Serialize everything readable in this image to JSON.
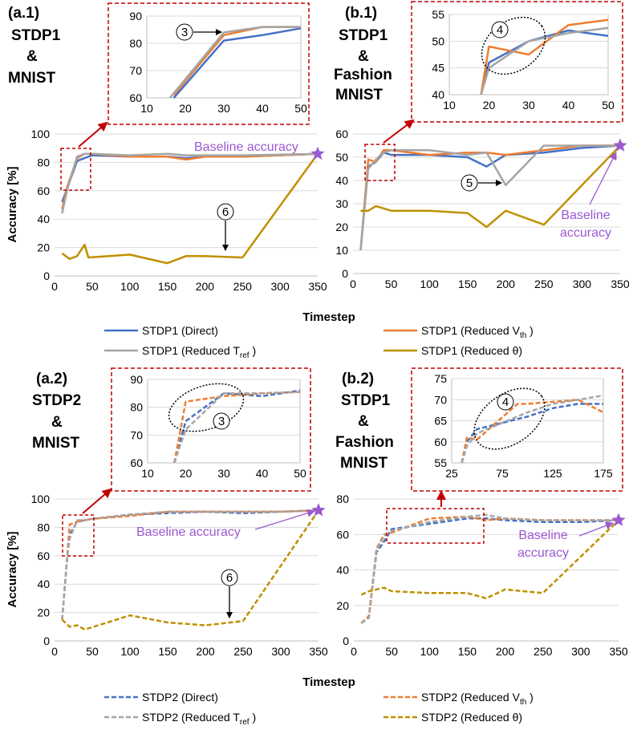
{
  "colors": {
    "direct": "#4472c4",
    "vth": "#ed7d31",
    "tref": "#a5a5a5",
    "theta": "#bf9000",
    "baseline": "#9b59d0",
    "zoom": "#c00000"
  },
  "labels": {
    "a1": [
      "(a.1)",
      "STDP1",
      "&",
      "MNIST"
    ],
    "b1": [
      "(b.1)",
      "STDP1",
      "&",
      "Fashion",
      "MNIST"
    ],
    "a2": [
      "(a.2)",
      "STDP2",
      "&",
      "MNIST"
    ],
    "b2": [
      "(b.2)",
      "STDP1",
      "&",
      "Fashion",
      "MNIST"
    ]
  },
  "axes": {
    "ylabel": "Accuracy [%]",
    "xlabel_top": "Timestep",
    "xlabel_bottom": "Timestep"
  },
  "annotations": {
    "baseline_a1": "Baseline accuracy",
    "baseline_b1": [
      "Baseline",
      "accuracy"
    ],
    "baseline_a2": "Baseline accuracy",
    "baseline_b2": [
      "Baseline",
      "accuracy"
    ],
    "marker3_a1": "3",
    "marker4_b1": "4",
    "marker5_b1": "5",
    "marker6_a1": "6",
    "marker3_a2": "3",
    "marker4_b2": "4",
    "marker6_a2": "6"
  },
  "legend_top": [
    {
      "label": "STDP1 (Direct)",
      "series": "direct"
    },
    {
      "label": "STDP1 (Reduced V",
      "sub": "th",
      "tail": " )",
      "series": "vth"
    },
    {
      "label": "STDP1 (Reduced T",
      "sub": "ref",
      "tail": " )",
      "series": "tref"
    },
    {
      "label": "STDP1 (Reduced θ)",
      "series": "theta"
    }
  ],
  "legend_bottom": [
    {
      "label": "STDP2 (Direct)",
      "series": "direct"
    },
    {
      "label": "STDP2 (Reduced  V",
      "sub": "th",
      "tail": " )",
      "series": "vth"
    },
    {
      "label": "STDP2 (Reduced T",
      "sub": "ref",
      "tail": " )",
      "series": "tref"
    },
    {
      "label": "STDP2 (Reduced θ)",
      "series": "theta"
    }
  ],
  "chart_data": [
    {
      "id": "a1_main",
      "type": "line",
      "title": "(a.1) STDP1 & MNIST",
      "xlabel": "Timestep",
      "ylabel": "Accuracy [%]",
      "xlim": [
        0,
        350
      ],
      "ylim": [
        0,
        100
      ],
      "xticks": [
        0,
        50,
        100,
        150,
        200,
        250,
        300,
        350
      ],
      "yticks": [
        0,
        20,
        40,
        60,
        80,
        100
      ],
      "dashed": false,
      "series": [
        {
          "name": "STDP1 (Direct)",
          "key": "direct",
          "x": [
            10,
            17,
            30,
            40,
            50,
            100,
            150,
            175,
            200,
            250,
            350
          ],
          "y": [
            52,
            62,
            81,
            83,
            85,
            84,
            84,
            83,
            84,
            84,
            86
          ]
        },
        {
          "name": "STDP1 (Reduced Vth)",
          "key": "vth",
          "x": [
            10,
            17,
            30,
            40,
            50,
            100,
            150,
            175,
            200,
            250,
            350
          ],
          "y": [
            47,
            63,
            83,
            86,
            86,
            84,
            84,
            82,
            84,
            84,
            86
          ]
        },
        {
          "name": "STDP1 (Reduced Tref)",
          "key": "tref",
          "x": [
            10,
            17,
            30,
            40,
            50,
            100,
            150,
            175,
            200,
            250,
            350
          ],
          "y": [
            44,
            61,
            84,
            86,
            86,
            85,
            86,
            85,
            85,
            85,
            86
          ]
        },
        {
          "name": "STDP1 (Reduced θ)",
          "key": "theta",
          "x": [
            10,
            20,
            30,
            40,
            45,
            100,
            150,
            175,
            200,
            250,
            350
          ],
          "y": [
            16,
            12,
            14,
            22,
            13,
            15,
            9,
            14,
            14,
            13,
            86
          ]
        }
      ]
    },
    {
      "id": "a1_zoom",
      "type": "line",
      "xlim": [
        10,
        50
      ],
      "ylim": [
        60,
        90
      ],
      "xticks": [
        10,
        20,
        30,
        40,
        50
      ],
      "yticks": [
        60,
        70,
        80,
        90
      ],
      "dashed": false,
      "series": [
        {
          "key": "direct",
          "x": [
            17,
            30,
            40,
            50
          ],
          "y": [
            60,
            81,
            83,
            85.5
          ]
        },
        {
          "key": "vth",
          "x": [
            17,
            30,
            40,
            50
          ],
          "y": [
            61,
            83,
            86,
            86
          ]
        },
        {
          "key": "tref",
          "x": [
            16,
            30,
            40,
            50
          ],
          "y": [
            58,
            84,
            86,
            86
          ]
        }
      ]
    },
    {
      "id": "b1_main",
      "type": "line",
      "title": "(b.1) STDP1 & Fashion MNIST",
      "xlabel": "Timestep",
      "xlim": [
        0,
        350
      ],
      "ylim": [
        0,
        60
      ],
      "xticks": [
        0,
        50,
        100,
        150,
        200,
        250,
        300,
        350
      ],
      "yticks": [
        0,
        10,
        20,
        30,
        40,
        50,
        60
      ],
      "dashed": false,
      "series": [
        {
          "key": "direct",
          "x": [
            10,
            20,
            30,
            40,
            50,
            100,
            150,
            175,
            200,
            250,
            300,
            350
          ],
          "y": [
            10,
            46,
            48,
            52,
            51,
            51,
            50,
            46,
            51,
            52,
            54,
            55
          ]
        },
        {
          "key": "vth",
          "x": [
            10,
            20,
            30,
            40,
            50,
            100,
            150,
            175,
            200,
            250,
            300,
            350
          ],
          "y": [
            10,
            49,
            48,
            53,
            53,
            51,
            52,
            52,
            51,
            53,
            55,
            55
          ]
        },
        {
          "key": "tref",
          "x": [
            10,
            20,
            30,
            40,
            50,
            100,
            150,
            175,
            200,
            250,
            300,
            350
          ],
          "y": [
            10,
            45,
            49,
            52,
            53,
            53,
            51,
            52,
            38,
            55,
            55,
            55
          ]
        },
        {
          "key": "theta",
          "x": [
            10,
            20,
            30,
            40,
            50,
            100,
            150,
            175,
            200,
            250,
            350
          ],
          "y": [
            27,
            27,
            29,
            28,
            27,
            27,
            26,
            20,
            27,
            21,
            55
          ]
        }
      ]
    },
    {
      "id": "b1_zoom",
      "type": "line",
      "xlim": [
        10,
        50
      ],
      "ylim": [
        40,
        55
      ],
      "xticks": [
        10,
        20,
        30,
        40,
        50
      ],
      "yticks": [
        40,
        45,
        50,
        55
      ],
      "dashed": false,
      "series": [
        {
          "key": "direct",
          "x": [
            18,
            20,
            30,
            40,
            50
          ],
          "y": [
            40,
            46,
            50,
            52,
            51
          ]
        },
        {
          "key": "vth",
          "x": [
            18,
            20,
            30,
            40,
            50
          ],
          "y": [
            40,
            49,
            47.5,
            53,
            54
          ]
        },
        {
          "key": "tref",
          "x": [
            18,
            20,
            30,
            40,
            50
          ],
          "y": [
            40,
            45,
            50,
            51.5,
            52.5
          ]
        }
      ]
    },
    {
      "id": "a2_main",
      "type": "line",
      "title": "(a.2) STDP2 & MNIST",
      "xlabel": "Timestep",
      "ylabel": "Accuracy [%]",
      "xlim": [
        0,
        350
      ],
      "ylim": [
        0,
        100
      ],
      "xticks": [
        0,
        50,
        100,
        150,
        200,
        250,
        300,
        350
      ],
      "yticks": [
        0,
        20,
        40,
        60,
        80,
        100
      ],
      "dashed": true,
      "series": [
        {
          "key": "direct",
          "x": [
            10,
            17,
            20,
            30,
            40,
            50,
            100,
            150,
            200,
            250,
            300,
            350
          ],
          "y": [
            15,
            60,
            75,
            84,
            85,
            86,
            89,
            90,
            91,
            90,
            91,
            92
          ]
        },
        {
          "key": "vth",
          "x": [
            10,
            17,
            20,
            30,
            40,
            50,
            100,
            150,
            200,
            250,
            300,
            350
          ],
          "y": [
            15,
            61,
            82,
            84,
            85,
            86,
            88,
            91,
            91,
            91,
            91,
            92
          ]
        },
        {
          "key": "tref",
          "x": [
            10,
            17,
            20,
            30,
            40,
            50,
            100,
            150,
            200,
            250,
            300,
            350
          ],
          "y": [
            15,
            60,
            72,
            85,
            85,
            86,
            89,
            91,
            91,
            91,
            91,
            92
          ]
        },
        {
          "key": "theta",
          "x": [
            10,
            20,
            30,
            40,
            100,
            150,
            200,
            250,
            350
          ],
          "y": [
            15,
            10,
            11,
            8,
            18,
            13,
            11,
            14,
            92
          ]
        }
      ]
    },
    {
      "id": "a2_zoom",
      "type": "line",
      "xlim": [
        10,
        50
      ],
      "ylim": [
        60,
        90
      ],
      "xticks": [
        10,
        20,
        30,
        40,
        50
      ],
      "yticks": [
        60,
        70,
        80,
        90
      ],
      "dashed": true,
      "series": [
        {
          "key": "direct",
          "x": [
            17,
            20,
            30,
            40,
            50
          ],
          "y": [
            60,
            75,
            85,
            84,
            86
          ]
        },
        {
          "key": "vth",
          "x": [
            17,
            20,
            30,
            40,
            50
          ],
          "y": [
            60,
            82,
            84,
            85,
            85.5
          ]
        },
        {
          "key": "tref",
          "x": [
            17,
            20,
            30,
            40,
            50
          ],
          "y": [
            60,
            72,
            85,
            85,
            85.5
          ]
        }
      ]
    },
    {
      "id": "b2_main",
      "type": "line",
      "title": "(b.2) STDP1 & Fashion MNIST",
      "xlabel": "Timestep",
      "xlim": [
        0,
        350
      ],
      "ylim": [
        0,
        80
      ],
      "xticks": [
        0,
        50,
        100,
        150,
        200,
        250,
        300,
        350
      ],
      "yticks": [
        0,
        20,
        40,
        60,
        80
      ],
      "dashed": true,
      "series": [
        {
          "key": "direct",
          "x": [
            10,
            20,
            30,
            40,
            50,
            100,
            150,
            175,
            200,
            250,
            300,
            350
          ],
          "y": [
            10,
            14,
            50,
            56,
            63,
            66,
            69,
            69,
            68,
            67,
            67,
            68
          ]
        },
        {
          "key": "vth",
          "x": [
            10,
            20,
            30,
            40,
            50,
            100,
            150,
            175,
            200,
            250,
            300,
            350
          ],
          "y": [
            10,
            14,
            52,
            60,
            61,
            69,
            70,
            68,
            69,
            68,
            68,
            68
          ]
        },
        {
          "key": "tref",
          "x": [
            10,
            20,
            30,
            40,
            50,
            100,
            150,
            175,
            200,
            250,
            300,
            350
          ],
          "y": [
            10,
            13,
            51,
            59,
            62,
            67,
            70,
            71,
            69,
            68,
            68,
            68
          ]
        },
        {
          "key": "theta",
          "x": [
            10,
            20,
            40,
            50,
            100,
            150,
            175,
            200,
            250,
            350
          ],
          "y": [
            26,
            28,
            30,
            28,
            27,
            27,
            24,
            29,
            27,
            68
          ]
        }
      ]
    },
    {
      "id": "b2_zoom",
      "type": "line",
      "xlim": [
        25,
        175
      ],
      "ylim": [
        55,
        75
      ],
      "xticks": [
        25,
        75,
        125,
        175
      ],
      "yticks": [
        55,
        60,
        65,
        70,
        75
      ],
      "dashed": true,
      "series": [
        {
          "key": "direct",
          "x": [
            35,
            40,
            50,
            100,
            125,
            150,
            175
          ],
          "y": [
            55,
            60,
            63,
            66,
            68,
            69,
            69
          ]
        },
        {
          "key": "vth",
          "x": [
            35,
            40,
            50,
            90,
            100,
            150,
            175
          ],
          "y": [
            55,
            61,
            60.5,
            69,
            69,
            70,
            67
          ]
        },
        {
          "key": "tref",
          "x": [
            35,
            40,
            50,
            100,
            125,
            150,
            175
          ],
          "y": [
            55,
            59,
            62,
            67,
            69,
            70,
            71
          ]
        }
      ]
    }
  ]
}
